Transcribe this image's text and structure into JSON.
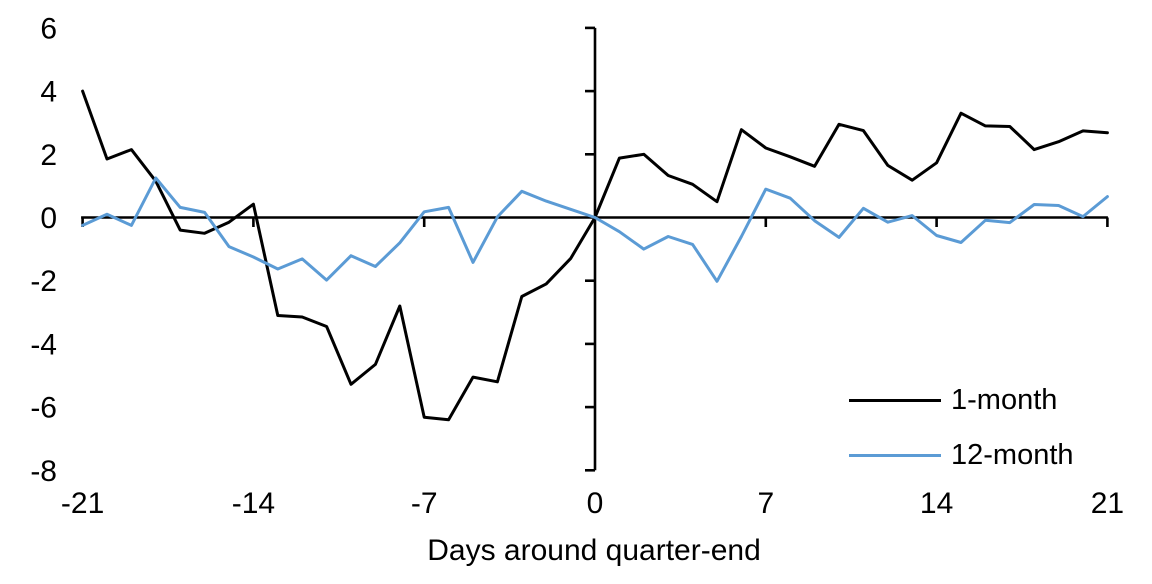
{
  "chart_data": {
    "type": "line",
    "title": "",
    "xlabel": "Days around quarter-end",
    "ylabel": "",
    "xlim": [
      -21,
      21
    ],
    "ylim": [
      -8,
      6
    ],
    "x_ticks": [
      -21,
      -14,
      -7,
      0,
      7,
      14,
      21
    ],
    "y_ticks": [
      6,
      4,
      2,
      0,
      -2,
      -4,
      -6,
      -8
    ],
    "grid": false,
    "legend_position": "inside-lower-right",
    "x": [
      -21,
      -20,
      -19,
      -18,
      -17,
      -16,
      -15,
      -14,
      -13,
      -12,
      -11,
      -10,
      -9,
      -8,
      -7,
      -6,
      -5,
      -4,
      -3,
      -2,
      -1,
      0,
      1,
      2,
      3,
      4,
      5,
      6,
      7,
      8,
      9,
      10,
      11,
      12,
      13,
      14,
      15,
      16,
      17,
      18,
      19,
      20,
      21
    ],
    "series": [
      {
        "name": "1-month",
        "color": "#000000",
        "values": [
          4.0,
          1.85,
          2.15,
          1.15,
          -0.4,
          -0.5,
          -0.15,
          0.42,
          -3.1,
          -3.15,
          -3.45,
          -5.28,
          -4.65,
          -2.8,
          -6.32,
          -6.4,
          -5.05,
          -5.2,
          -2.5,
          -2.1,
          -1.3,
          0,
          1.88,
          2.0,
          1.33,
          1.05,
          0.5,
          2.78,
          2.2,
          1.92,
          1.62,
          2.95,
          2.75,
          1.65,
          1.18,
          1.73,
          3.3,
          2.9,
          2.88,
          2.15,
          2.4,
          2.74,
          2.68
        ]
      },
      {
        "name": "12-month",
        "color": "#5B9BD5",
        "values": [
          -0.25,
          0.1,
          -0.25,
          1.25,
          0.32,
          0.16,
          -0.92,
          -1.25,
          -1.63,
          -1.31,
          -1.98,
          -1.21,
          -1.55,
          -0.8,
          0.18,
          0.32,
          -1.42,
          0.02,
          0.83,
          0.52,
          0.26,
          0,
          -0.45,
          -1.0,
          -0.6,
          -0.85,
          -2.02,
          -0.6,
          0.9,
          0.61,
          -0.1,
          -0.63,
          0.29,
          -0.15,
          0.06,
          -0.57,
          -0.79,
          -0.09,
          -0.16,
          0.41,
          0.38,
          0.03,
          0.66
        ]
      }
    ]
  },
  "colors": {
    "background": "#FFFFFF",
    "axis": "#000000"
  }
}
